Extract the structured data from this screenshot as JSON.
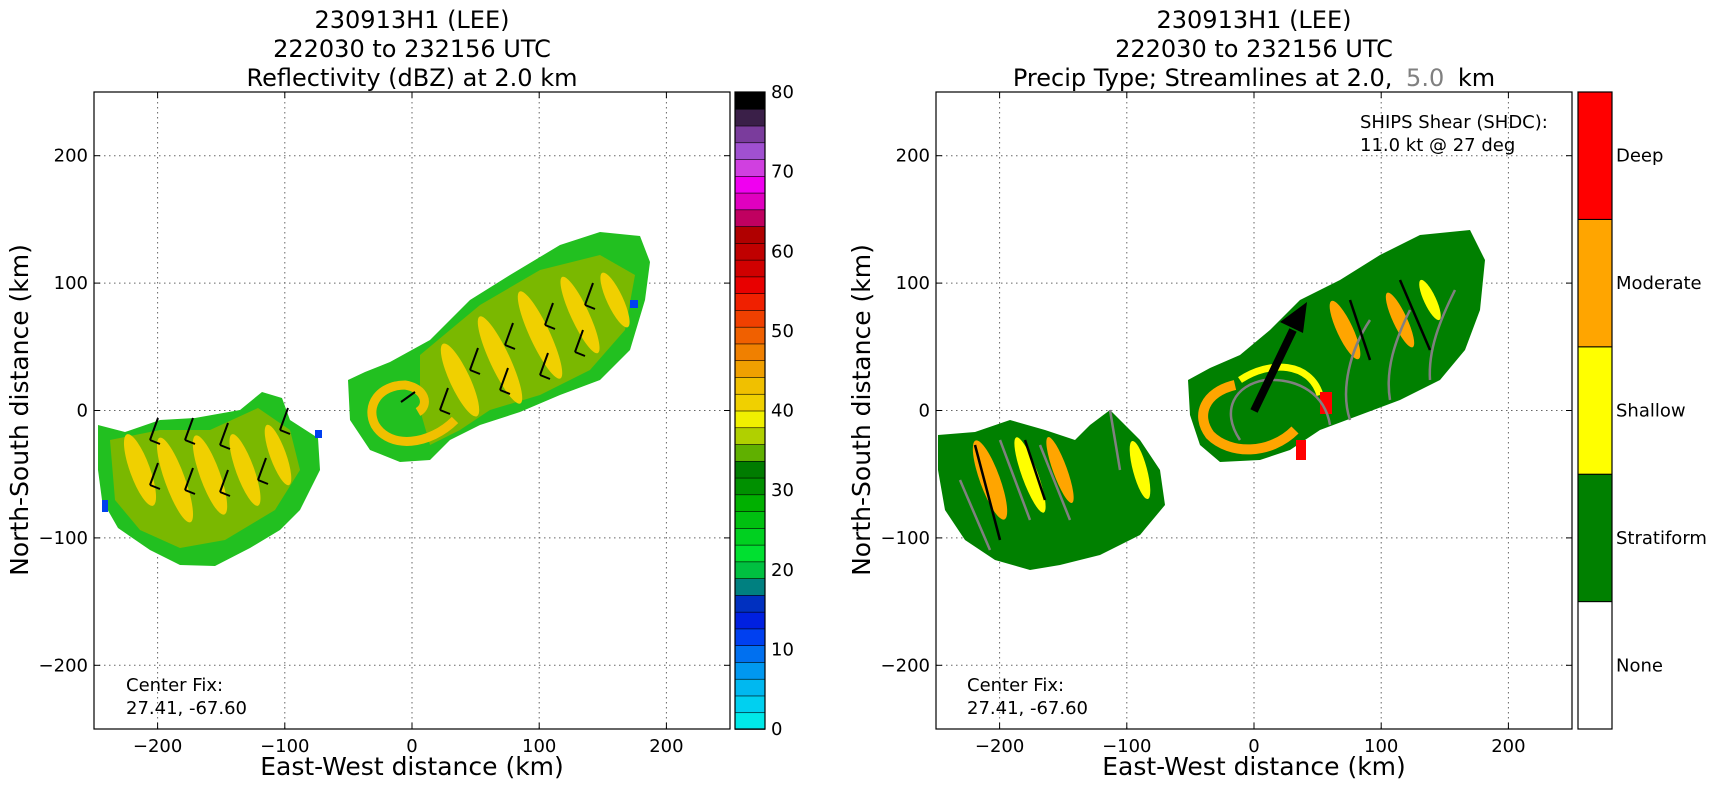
{
  "chart_data": [
    {
      "type": "heatmap",
      "title": [
        "230913H1 (LEE)",
        "222030 to 232156 UTC",
        "Reflectivity (dBZ) at 2.0 km"
      ],
      "xlabel": "East-West distance (km)",
      "ylabel": "North-South distance (km)",
      "xlim": [
        -250,
        250
      ],
      "ylim": [
        -250,
        250
      ],
      "xticks": [
        -200,
        -100,
        0,
        100,
        200
      ],
      "yticks": [
        -200,
        -100,
        0,
        100,
        200
      ],
      "xtick_labels": [
        "−200",
        "−100",
        "0",
        "100",
        "200"
      ],
      "ytick_labels": [
        "−200",
        "−100",
        "0",
        "100",
        "200"
      ],
      "grid": true,
      "annotation": [
        "Center Fix:",
        "27.41, -67.60"
      ],
      "colorbar": {
        "range": [
          0,
          80
        ],
        "step": 2.5,
        "ticks": [
          0,
          10,
          20,
          30,
          40,
          50,
          60,
          70,
          80
        ],
        "tick_labels": [
          "0",
          "10",
          "20",
          "30",
          "40",
          "50",
          "60",
          "70",
          "80"
        ],
        "colors": [
          "#00e8e8",
          "#00d0f0",
          "#00b8f0",
          "#0098f0",
          "#0070f0",
          "#0040f0",
          "#0020e0",
          "#0030c0",
          "#008080",
          "#00c040",
          "#00e030",
          "#00d020",
          "#00c010",
          "#00b000",
          "#009000",
          "#007c00",
          "#60b000",
          "#b0d000",
          "#f0f000",
          "#f0d000",
          "#f0c000",
          "#f0a000",
          "#f08000",
          "#f06000",
          "#f04000",
          "#f02000",
          "#e80000",
          "#d00000",
          "#c00000",
          "#b00000",
          "#c00060",
          "#e000c0",
          "#f000f0",
          "#d040e0",
          "#a050d0",
          "#7a3c9c",
          "#3a1f48",
          "#000000"
        ]
      },
      "echo_regions": [
        {
          "x": [
            -250,
            -85
          ],
          "y": [
            -130,
            10
          ],
          "peak_dbz": 40
        },
        {
          "x": [
            -60,
            190
          ],
          "y": [
            -50,
            140
          ],
          "peak_dbz": 40
        }
      ]
    },
    {
      "type": "heatmap",
      "title": [
        "230913H1 (LEE)",
        "222030 to 232156 UTC",
        "Precip Type; Streamlines at 2.0,",
        "5.0",
        "km"
      ],
      "title_second_height_color": "#808080",
      "xlabel": "East-West distance (km)",
      "ylabel": "North-South distance (km)",
      "xlim": [
        -250,
        250
      ],
      "ylim": [
        -250,
        250
      ],
      "xticks": [
        -200,
        -100,
        0,
        100,
        200
      ],
      "yticks": [
        -200,
        -100,
        0,
        100,
        200
      ],
      "xtick_labels": [
        "−200",
        "−100",
        "0",
        "100",
        "200"
      ],
      "ytick_labels": [
        "−200",
        "−100",
        "0",
        "100",
        "200"
      ],
      "grid": true,
      "annotation": [
        "Center Fix:",
        "27.41, -67.60"
      ],
      "shear_annotation": [
        "SHIPS Shear (SHDC):",
        "11.0 kt @ 27 deg"
      ],
      "shear_vector": {
        "speed_kt": 11.0,
        "direction_deg": 27
      },
      "categories": [
        "None",
        "Stratiform",
        "Shallow",
        "Moderate",
        "Deep"
      ],
      "category_colors": [
        "#ffffff",
        "#008000",
        "#ffff00",
        "#ffa500",
        "#ff0000"
      ],
      "streamline_colors": {
        "2.0 km": "#000000",
        "5.0 km": "#808080"
      }
    }
  ]
}
